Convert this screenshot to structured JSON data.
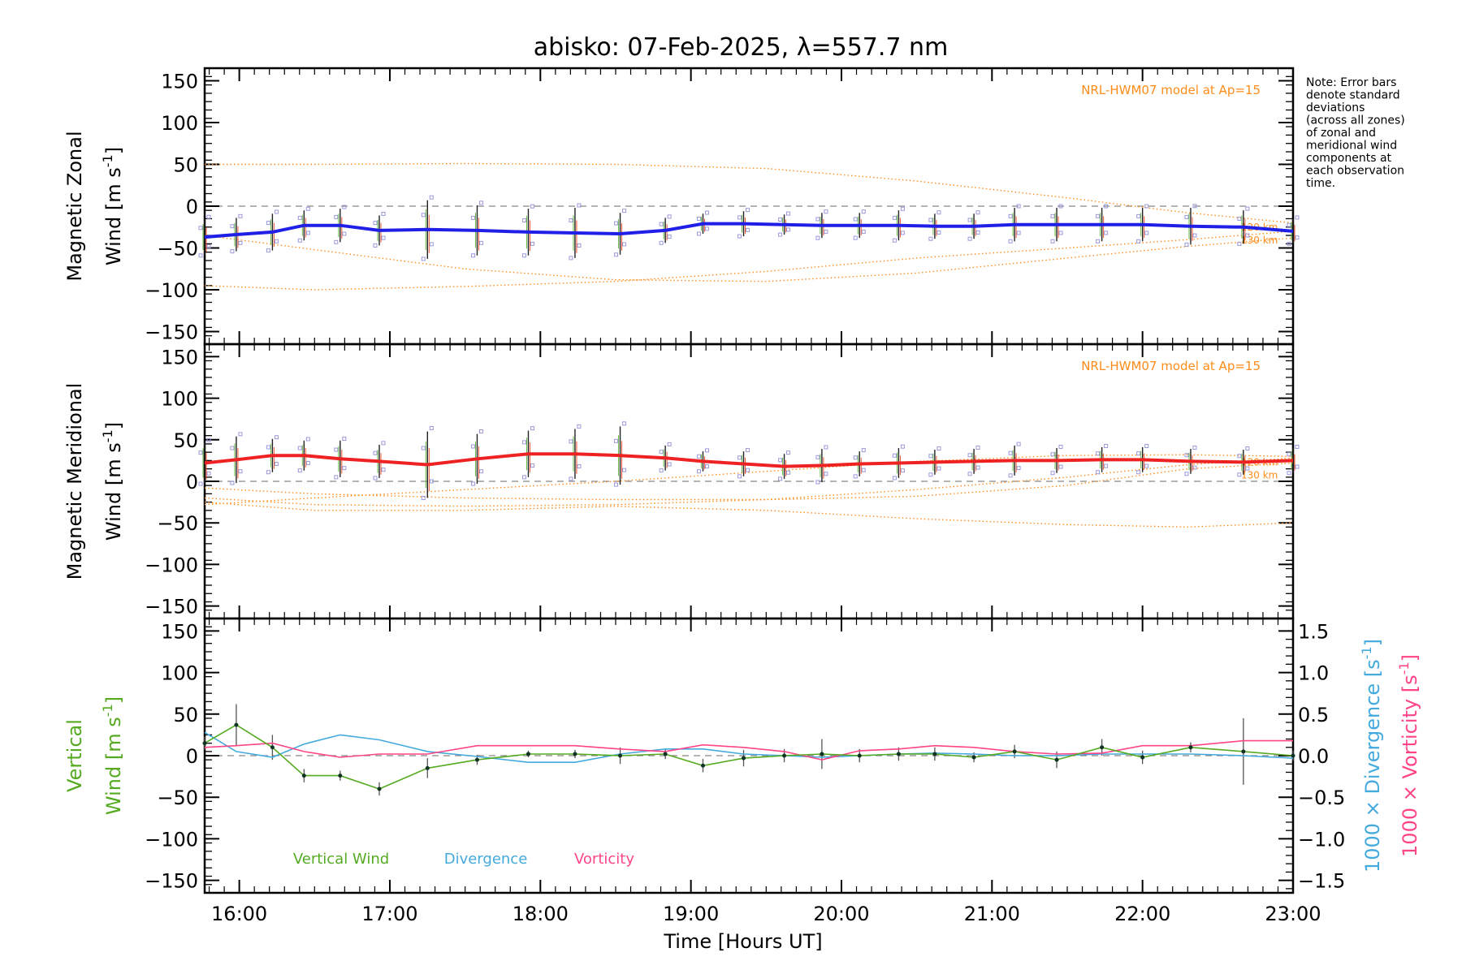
{
  "title": "abisko: 07-Feb-2025, λ=557.7 nm",
  "xlabel": "Time [Hours UT]",
  "note": "Note: Error bars denote standard deviations (across all zones) of zonal and meridional wind components at each observation time.",
  "note_lines": [
    "Note: Error bars",
    "denote standard",
    "deviations",
    "(across all zones)",
    "of zonal and",
    "meridional wind",
    "components at",
    "each observation",
    "time."
  ],
  "model_label": "NRL-HWM07 model at Ap=15",
  "colors": {
    "zonal": "#1f1fe8",
    "meridional": "#ee2222",
    "vertical": "#55aa22",
    "divergence": "#44aadd",
    "vorticity": "#ff4488",
    "model": "#ff8c1a",
    "zone_markers": "#9999dd"
  },
  "chart_data": [
    {
      "type": "line",
      "panel": "zonal",
      "ylabel_line1": "Magnetic Zonal",
      "ylabel_line2": "Wind [m s",
      "ylabel_sup": "-1",
      "ylabel_end": "]",
      "xlim": [
        15.77,
        23.0
      ],
      "ylim": [
        -165,
        165
      ],
      "yticks": [
        150,
        100,
        50,
        0,
        -50,
        -100,
        -150
      ],
      "xticks": [
        16,
        17,
        18,
        19,
        20,
        21,
        22,
        23
      ],
      "xtick_labels": [
        "16:00",
        "17:00",
        "18:00",
        "19:00",
        "20:00",
        "21:00",
        "22:00",
        "23:00"
      ],
      "model_height_labels": [
        "120 km",
        "130 km"
      ],
      "series": [
        {
          "x": [
            15.77,
            15.98,
            16.22,
            16.43,
            16.67,
            16.93,
            17.25,
            17.58,
            17.92,
            18.23,
            18.53,
            18.83,
            19.08,
            19.35,
            19.62,
            19.87,
            20.12,
            20.38,
            20.62,
            20.88,
            21.15,
            21.43,
            21.73,
            22.0,
            22.32,
            22.67,
            23.0
          ],
          "y": [
            -37,
            -34,
            -31,
            -23,
            -23,
            -29,
            -28,
            -29,
            -31,
            -32,
            -33,
            -29,
            -21,
            -21,
            -22,
            -23,
            -23,
            -23,
            -24,
            -24,
            -22,
            -22,
            -22,
            -22,
            -24,
            -25,
            -30
          ],
          "err": [
            22,
            20,
            22,
            18,
            20,
            18,
            35,
            30,
            28,
            30,
            25,
            15,
            12,
            15,
            12,
            15,
            15,
            18,
            15,
            15,
            20,
            20,
            20,
            20,
            22,
            20,
            15
          ]
        }
      ],
      "model_curves": [
        {
          "x": [
            15.77,
            16.5,
            17.5,
            18.5,
            19.5,
            20.5,
            21.5,
            22.3,
            23.0
          ],
          "y": [
            50,
            50,
            51,
            50,
            45,
            30,
            10,
            -8,
            -20
          ]
        },
        {
          "x": [
            15.77,
            16.5,
            17.5,
            18.5,
            19.5,
            20.5,
            21.5,
            22.3,
            23.0
          ],
          "y": [
            -95,
            -100,
            -96,
            -90,
            -78,
            -62,
            -50,
            -40,
            -30
          ]
        },
        {
          "x": [
            15.77,
            16.5,
            17.5,
            18.5,
            19.5,
            20.5,
            21.5,
            22.3,
            23.0
          ],
          "y": [
            -35,
            -52,
            -75,
            -88,
            -90,
            -80,
            -62,
            -48,
            -38
          ]
        }
      ]
    },
    {
      "type": "line",
      "panel": "meridional",
      "ylabel_line1": "Magnetic Meridional",
      "ylabel_line2": "Wind [m s",
      "ylabel_sup": "-1",
      "ylabel_end": "]",
      "xlim": [
        15.77,
        23.0
      ],
      "ylim": [
        -165,
        165
      ],
      "yticks": [
        150,
        100,
        50,
        0,
        -50,
        -100,
        -150
      ],
      "model_height_labels": [
        "120 km",
        "130 km"
      ],
      "series": [
        {
          "x": [
            15.77,
            15.98,
            16.22,
            16.43,
            16.67,
            16.93,
            17.25,
            17.58,
            17.92,
            18.23,
            18.53,
            18.83,
            19.08,
            19.35,
            19.62,
            19.87,
            20.12,
            20.38,
            20.62,
            20.88,
            21.15,
            21.43,
            21.73,
            22.0,
            22.32,
            22.67,
            23.0
          ],
          "y": [
            22,
            26,
            31,
            31,
            27,
            24,
            20,
            27,
            33,
            33,
            31,
            28,
            24,
            21,
            18,
            19,
            21,
            22,
            23,
            24,
            25,
            25,
            26,
            26,
            24,
            23,
            25
          ],
          "err": [
            25,
            28,
            20,
            18,
            22,
            20,
            40,
            30,
            28,
            30,
            35,
            15,
            12,
            15,
            15,
            20,
            15,
            18,
            15,
            15,
            18,
            15,
            15,
            15,
            15,
            15,
            15
          ]
        }
      ],
      "model_curves": [
        {
          "x": [
            15.77,
            16.5,
            17.5,
            18.5,
            19.5,
            20.5,
            21.5,
            22.3,
            23.0
          ],
          "y": [
            -28,
            -20,
            -10,
            0,
            12,
            24,
            31,
            32,
            30
          ]
        },
        {
          "x": [
            15.77,
            16.5,
            17.5,
            18.5,
            19.5,
            20.5,
            21.5,
            22.3,
            23.0
          ],
          "y": [
            -8,
            -15,
            -20,
            -22,
            -22,
            -18,
            -5,
            15,
            22
          ]
        },
        {
          "x": [
            15.77,
            16.5,
            17.5,
            18.5,
            19.5,
            20.5,
            21.5,
            22.3,
            23.0
          ],
          "y": [
            -20,
            -28,
            -30,
            -28,
            -22,
            -10,
            5,
            20,
            28
          ]
        },
        {
          "x": [
            15.77,
            16.5,
            17.5,
            18.5,
            19.5,
            20.5,
            21.5,
            22.3,
            23.0
          ],
          "y": [
            -25,
            -35,
            -35,
            -30,
            -35,
            -45,
            -52,
            -55,
            -50
          ]
        }
      ]
    },
    {
      "type": "line",
      "panel": "vertical",
      "ylabel_line1": "Vertical",
      "ylabel_line2": "Wind [m s",
      "ylabel_sup": "-1",
      "ylabel_end": "]",
      "y2label_div": "1000 × Divergence [s",
      "y2label_vort": "1000 × Vorticity [s",
      "y2label_sup": "-1",
      "y2label_end": "]",
      "xlim": [
        15.77,
        23.0
      ],
      "ylim": [
        -165,
        165
      ],
      "yticks": [
        150,
        100,
        50,
        0,
        -50,
        -100,
        -150
      ],
      "y2lim": [
        -1.65,
        1.65
      ],
      "y2ticks": [
        1.5,
        1.0,
        0.5,
        0.0,
        -0.5,
        -1.0,
        -1.5
      ],
      "y2tick_labels": [
        "1.5",
        "1.0",
        "0.5",
        "0.0",
        "−0.5",
        "−1.0",
        "−1.5"
      ],
      "legend": [
        "Vertical Wind",
        "Divergence",
        "Vorticity"
      ],
      "series": [
        {
          "name": "Vertical Wind",
          "x": [
            15.77,
            15.98,
            16.22,
            16.43,
            16.67,
            16.93,
            17.25,
            17.58,
            17.92,
            18.23,
            18.53,
            18.83,
            19.08,
            19.35,
            19.62,
            19.87,
            20.12,
            20.38,
            20.62,
            20.88,
            21.15,
            21.43,
            21.73,
            22.0,
            22.32,
            22.67,
            23.0
          ],
          "y": [
            15,
            37,
            10,
            -24,
            -24,
            -40,
            -15,
            -5,
            2,
            2,
            0,
            2,
            -12,
            -3,
            0,
            2,
            0,
            2,
            2,
            -2,
            5,
            -5,
            10,
            -2,
            10,
            5,
            0
          ],
          "err": [
            8,
            25,
            15,
            8,
            6,
            8,
            12,
            6,
            4,
            5,
            10,
            6,
            8,
            10,
            8,
            18,
            8,
            8,
            8,
            6,
            8,
            10,
            10,
            8,
            6,
            40,
            6
          ]
        },
        {
          "name": "Divergence",
          "x": [
            15.77,
            15.98,
            16.22,
            16.43,
            16.67,
            16.93,
            17.25,
            17.58,
            17.92,
            18.23,
            18.53,
            18.83,
            19.08,
            19.35,
            19.62,
            19.87,
            20.12,
            20.38,
            20.62,
            20.88,
            21.15,
            21.43,
            21.73,
            22.0,
            22.32,
            22.67,
            23.0
          ],
          "y": [
            0.28,
            0.05,
            -0.02,
            0.14,
            0.25,
            0.19,
            0.05,
            -0.01,
            -0.08,
            -0.08,
            0.02,
            0.08,
            0.08,
            0.02,
            0.0,
            -0.02,
            0.0,
            0.02,
            0.03,
            0.02,
            0.0,
            0.0,
            0.02,
            0.02,
            0.02,
            0.0,
            -0.03
          ]
        },
        {
          "name": "Vorticity",
          "x": [
            15.77,
            15.98,
            16.22,
            16.43,
            16.67,
            16.93,
            17.25,
            17.58,
            17.92,
            18.23,
            18.53,
            18.83,
            19.08,
            19.35,
            19.62,
            19.87,
            20.12,
            20.38,
            20.62,
            20.88,
            21.15,
            21.43,
            21.73,
            22.0,
            22.32,
            22.67,
            23.0
          ],
          "y": [
            0.1,
            0.12,
            0.15,
            0.05,
            -0.02,
            0.02,
            0.02,
            0.12,
            0.12,
            0.12,
            0.08,
            0.05,
            0.13,
            0.1,
            0.05,
            -0.05,
            0.06,
            0.08,
            0.12,
            0.1,
            0.05,
            0.02,
            0.03,
            0.12,
            0.12,
            0.18,
            0.18
          ]
        }
      ]
    }
  ]
}
